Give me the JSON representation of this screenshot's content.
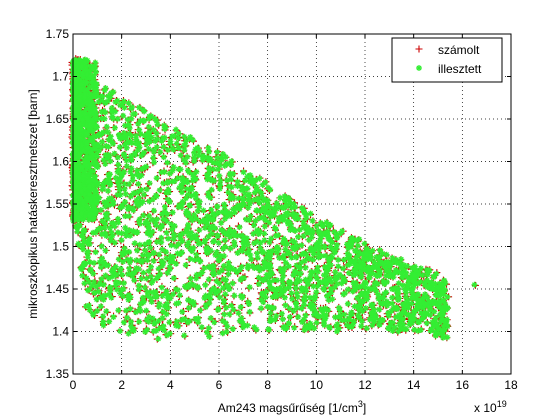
{
  "chart_data": {
    "type": "scatter",
    "xlabel": "Am243  magsűrűség [1/cm",
    "xlabel_sup": "3",
    "xlabel_tail": "]",
    "ylabel": "mikroszkopikus hatáskeresztmetszet [barn]",
    "x_multiplier": "x 10",
    "x_multiplier_exp": "19",
    "xlim": [
      0,
      18
    ],
    "ylim": [
      1.35,
      1.75
    ],
    "x_ticks": [
      "0",
      "2",
      "4",
      "6",
      "8",
      "10",
      "12",
      "14",
      "16",
      "18"
    ],
    "y_ticks": [
      "1.35",
      "1.4",
      "1.45",
      "1.5",
      "1.55",
      "1.6",
      "1.65",
      "1.7",
      "1.75"
    ],
    "grid": true,
    "legend_position": "top-right",
    "series": [
      {
        "name": "számolt",
        "marker": "+",
        "color": "#cc0000"
      },
      {
        "name": "illesztett",
        "marker": "*",
        "color": "#33ee33"
      }
    ],
    "envelope": {
      "x": [
        0,
        0.5,
        1,
        2,
        3,
        4,
        5,
        6,
        7,
        8,
        9,
        10,
        11,
        12,
        13,
        14,
        15.4
      ],
      "upper": [
        1.72,
        1.715,
        1.695,
        1.675,
        1.66,
        1.645,
        1.628,
        1.612,
        1.593,
        1.575,
        1.555,
        1.535,
        1.52,
        1.505,
        1.49,
        1.48,
        1.462
      ],
      "lower": [
        1.55,
        1.43,
        1.41,
        1.395,
        1.39,
        1.388,
        1.392,
        1.395,
        1.398,
        1.398,
        1.4,
        1.4,
        1.4,
        1.4,
        1.4,
        1.4,
        1.39
      ]
    },
    "outlier": {
      "x": 16.5,
      "y": 1.455
    },
    "dense_column": {
      "x": [
        0,
        1
      ],
      "y": [
        1.53,
        1.72
      ]
    },
    "point_count": 2200
  }
}
